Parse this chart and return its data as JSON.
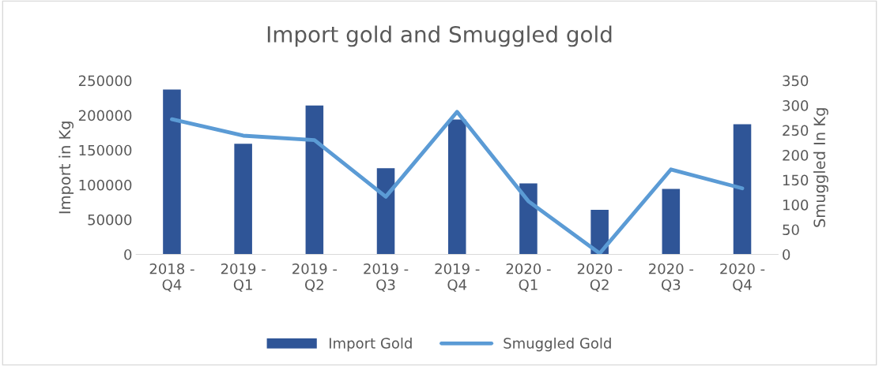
{
  "chart_data": {
    "type": "bar",
    "title": "Import gold and Smuggled gold",
    "categories": [
      "2018 -\nQ4",
      "2019 -\nQ1",
      "2019 -\nQ2",
      "2019 -\nQ3",
      "2019 -\nQ4",
      "2020 -\nQ1",
      "2020 -\nQ2",
      "2020 -\nQ3",
      "2020 -\nQ4"
    ],
    "series": [
      {
        "name": "Import Gold",
        "color": "#2f5597",
        "values": [
          237000,
          159000,
          214000,
          124000,
          194000,
          102000,
          64000,
          94000,
          187000
        ]
      },
      {
        "name": "Smuggled Gold",
        "type": "line",
        "axis": "y2",
        "color": "#5b9bd5",
        "values": [
          272,
          239,
          230,
          116,
          287,
          107,
          2,
          171,
          133
        ]
      }
    ],
    "ylabel": "Import in Kg",
    "y2label": "Smuggled In Kg",
    "ylim": [
      0,
      250000
    ],
    "yticks": [
      0,
      50000,
      100000,
      150000,
      200000,
      250000
    ],
    "y2lim": [
      0,
      350
    ],
    "y2ticks": [
      0,
      50,
      100,
      150,
      200,
      250,
      300,
      350
    ],
    "grid": false,
    "legend": "bottom"
  }
}
